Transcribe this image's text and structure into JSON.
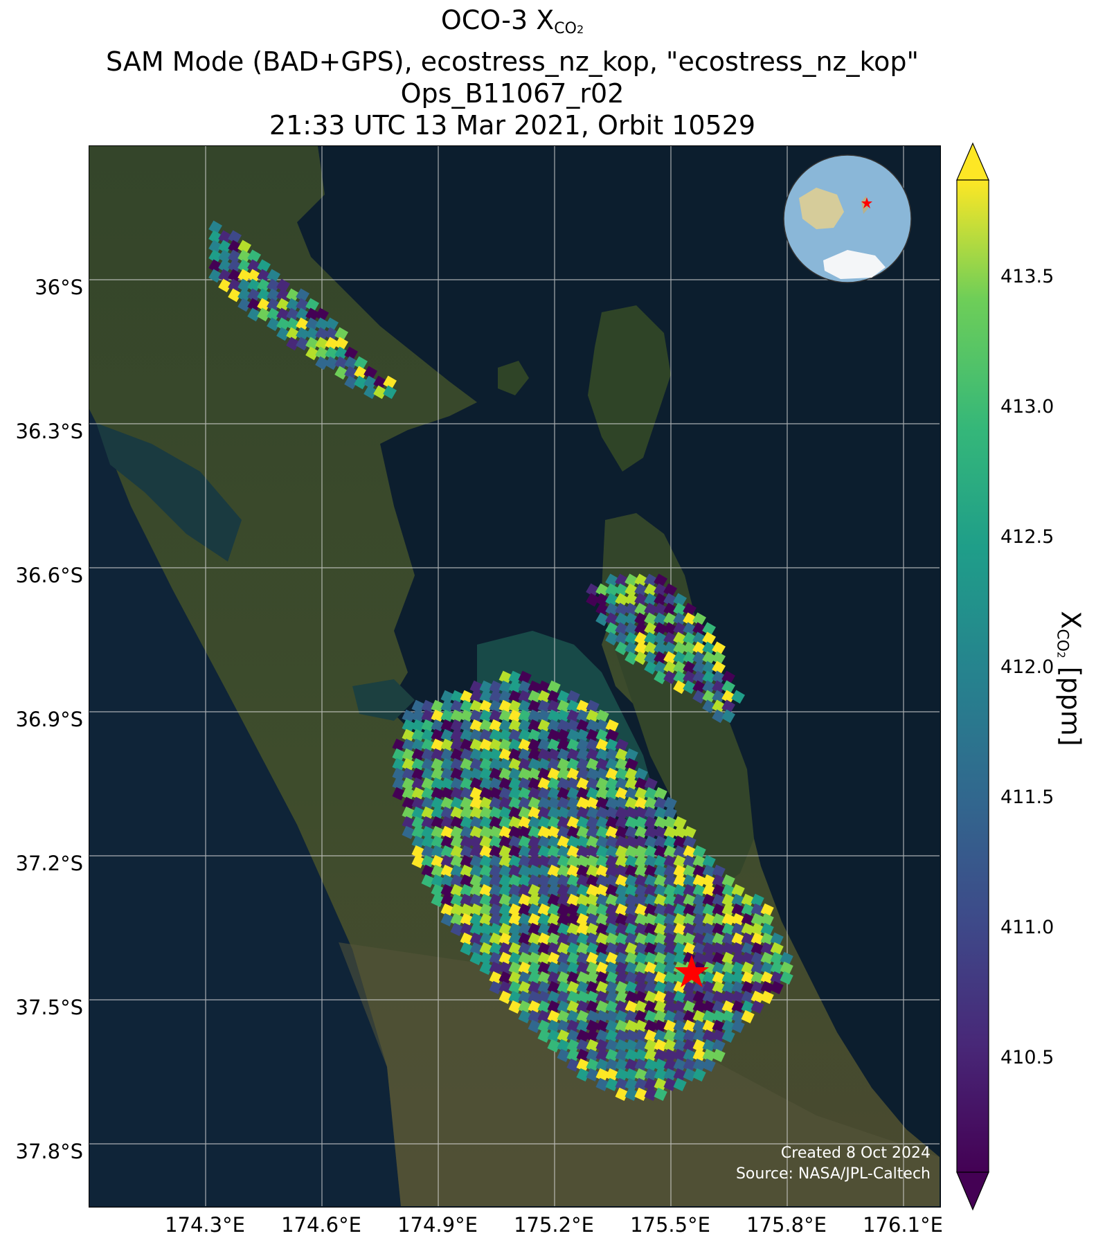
{
  "title": {
    "line1_prefix": "OCO-3 X",
    "line1_sub": "CO",
    "line1_sub2": "2",
    "line2": "SAM Mode (BAD+GPS), ecostress_nz_kop, \"ecostress_nz_kop\"",
    "line3": "Ops_B11067_r02",
    "line4": "21:33 UTC 13 Mar 2021, Orbit 10529"
  },
  "map": {
    "lat_labels": [
      "36°S",
      "36.3°S",
      "36.6°S",
      "36.9°S",
      "37.2°S",
      "37.5°S",
      "37.8°S"
    ],
    "lon_labels": [
      "174.3°E",
      "174.6°E",
      "174.9°E",
      "175.2°E",
      "175.5°E",
      "175.8°E",
      "176.1°E"
    ],
    "target_marker_icon": "red-star-icon",
    "target_color": "#ff0000",
    "ocean_color": "#0c1e2e",
    "land_color": "#3b4a2a",
    "credit_line1": "Created 8 Oct 2024",
    "credit_line2": "Source: NASA/JPL-Caltech"
  },
  "inset": {
    "content": "globe showing Australia, New Zealand and Antarctica with target marker",
    "marker_icon": "red-star-icon"
  },
  "colorbar": {
    "label_prefix": "X",
    "label_sub": "CO",
    "label_sub2": "2",
    "label_suffix": " [ppm]",
    "ticks": [
      "413.5",
      "413.0",
      "412.5",
      "412.0",
      "411.5",
      "411.0",
      "410.5"
    ],
    "colormap": "viridis",
    "extend": "both"
  }
}
